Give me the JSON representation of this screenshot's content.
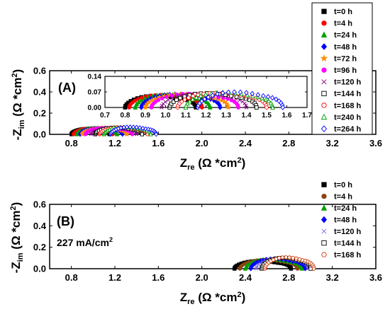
{
  "figure": {
    "panel_a_label": "(A)",
    "panel_b_label": "(B)",
    "panel_b_annotation": "227 mA/cm",
    "panel_b_annotation_sup": "2"
  },
  "chart_data": [
    {
      "type": "scatter",
      "panel": "A",
      "xlabel_main": "Z",
      "xlabel_sub": "re",
      "xlabel_rest": " (Ω *cm",
      "xlabel_sup": "2",
      "xlabel_end": ")",
      "ylabel_main": "-Z",
      "ylabel_sub": "im",
      "ylabel_rest": " (Ω *cm",
      "ylabel_sup": "2",
      "ylabel_end": ")",
      "xlim": [
        0.6,
        3.6
      ],
      "ylim": [
        0.0,
        0.6
      ],
      "xticks": [
        "0.8",
        "1.2",
        "1.6",
        "2.0",
        "2.4",
        "2.8",
        "3.2",
        "3.6"
      ],
      "yticks": [
        "0.0",
        "0.2",
        "0.4",
        "0.6"
      ],
      "legend_position": "right",
      "series": [
        {
          "name": "t=0 h",
          "color": "#000000",
          "marker": "square",
          "filled": true,
          "r_start": 0.8,
          "r_end": 1.15,
          "height": 0.055
        },
        {
          "name": "t=4 h",
          "color": "#ff0000",
          "marker": "circle",
          "filled": true,
          "r_start": 0.82,
          "r_end": 1.18,
          "height": 0.058
        },
        {
          "name": "t=24 h",
          "color": "#00a000",
          "marker": "triangle",
          "filled": true,
          "r_start": 0.85,
          "r_end": 1.22,
          "height": 0.06
        },
        {
          "name": "t=48 h",
          "color": "#0000ff",
          "marker": "diamond",
          "filled": true,
          "r_start": 0.88,
          "r_end": 1.27,
          "height": 0.062
        },
        {
          "name": "t=72 h",
          "color": "#ff8c00",
          "marker": "star",
          "filled": true,
          "r_start": 0.9,
          "r_end": 1.31,
          "height": 0.062
        },
        {
          "name": "t=96 h",
          "color": "#ff00ff",
          "marker": "circle",
          "filled": true,
          "r_start": 0.93,
          "r_end": 1.36,
          "height": 0.064
        },
        {
          "name": "t=120 h",
          "color": "#800080",
          "marker": "x",
          "filled": true,
          "r_start": 0.98,
          "r_end": 1.4,
          "height": 0.065
        },
        {
          "name": "t=144 h",
          "color": "#000000",
          "marker": "square",
          "filled": false,
          "r_start": 1.02,
          "r_end": 1.45,
          "height": 0.066
        },
        {
          "name": "t=168 h",
          "color": "#ff0000",
          "marker": "circle",
          "filled": false,
          "r_start": 1.06,
          "r_end": 1.5,
          "height": 0.068
        },
        {
          "name": "t=240 h",
          "color": "#00a000",
          "marker": "triangle",
          "filled": false,
          "r_start": 1.1,
          "r_end": 1.53,
          "height": 0.07
        },
        {
          "name": "t=264 h",
          "color": "#0000ff",
          "marker": "diamond",
          "filled": false,
          "r_start": 1.16,
          "r_end": 1.58,
          "height": 0.072
        }
      ]
    },
    {
      "type": "scatter",
      "panel": "A-inset",
      "xlim": [
        0.7,
        1.7
      ],
      "ylim": [
        0.0,
        0.14
      ],
      "xticks": [
        "0.7",
        "0.8",
        "0.9",
        "1.0",
        "1.1",
        "1.2",
        "1.3",
        "1.4",
        "1.5",
        "1.6",
        "1.7"
      ],
      "yticks": [
        "0.00",
        "0.07",
        "0.14"
      ],
      "series_ref": "same as panel A"
    },
    {
      "type": "scatter",
      "panel": "B",
      "xlabel_main": "Z",
      "xlabel_sub": "re",
      "xlabel_rest": " (Ω *cm",
      "xlabel_sup": "2",
      "xlabel_end": ")",
      "ylabel_main": "-Z",
      "ylabel_sub": "im",
      "ylabel_rest": " (Ω *cm",
      "ylabel_sup": "2",
      "ylabel_end": ")",
      "xlim": [
        0.6,
        3.6
      ],
      "ylim": [
        0.0,
        0.6
      ],
      "xticks": [
        "0.8",
        "1.2",
        "1.6",
        "2.0",
        "2.4",
        "2.8",
        "3.2",
        "3.6"
      ],
      "yticks": [
        "0.0",
        "0.2",
        "0.4",
        "0.6"
      ],
      "legend_position": "top-right",
      "series": [
        {
          "name": "t=0 h",
          "color": "#000000",
          "marker": "square",
          "filled": true,
          "r_start": 2.3,
          "r_end": 2.82,
          "height": 0.075
        },
        {
          "name": "t=4 h",
          "color": "#8b4513",
          "marker": "circle",
          "filled": true,
          "r_start": 2.35,
          "r_end": 2.88,
          "height": 0.085
        },
        {
          "name": "t=24 h",
          "color": "#00a000",
          "marker": "triangle",
          "filled": true,
          "r_start": 2.4,
          "r_end": 2.92,
          "height": 0.09
        },
        {
          "name": "t=48 h",
          "color": "#0000ff",
          "marker": "diamond",
          "filled": true,
          "r_start": 2.45,
          "r_end": 2.95,
          "height": 0.095
        },
        {
          "name": "t=120 h",
          "color": "#7b68ee",
          "marker": "x",
          "filled": true,
          "r_start": 2.5,
          "r_end": 2.98,
          "height": 0.1
        },
        {
          "name": "t=144 h",
          "color": "#000000",
          "marker": "square",
          "filled": false,
          "r_start": 2.55,
          "r_end": 3.0,
          "height": 0.105
        },
        {
          "name": "t=168 h",
          "color": "#cc3300",
          "marker": "circle",
          "filled": false,
          "r_start": 2.58,
          "r_end": 3.03,
          "height": 0.11
        }
      ]
    }
  ]
}
